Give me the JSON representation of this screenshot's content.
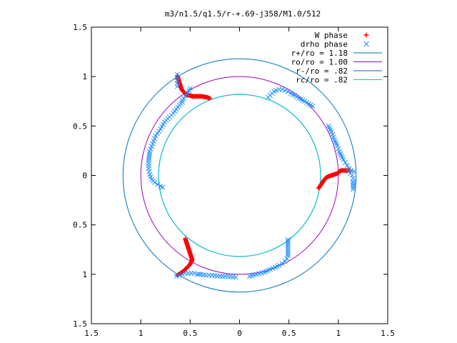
{
  "chart_data": {
    "type": "scatter",
    "title": "m3/n1.5/q1.5/r-+.69-j358/M1.0/512",
    "xlim": [
      -1.5,
      1.5
    ],
    "ylim": [
      -1.5,
      1.5
    ],
    "x_tick_labels": [
      "1.5",
      "1",
      "0.5",
      "0",
      "0.5",
      "1",
      "1.5"
    ],
    "x_tick_values": [
      -1.5,
      -1,
      -0.5,
      0,
      0.5,
      1,
      1.5
    ],
    "y_tick_labels": [
      "1.5",
      "1",
      "0.5",
      "0",
      "0.5",
      "1",
      "1.5"
    ],
    "y_tick_values": [
      1.5,
      1,
      0.5,
      0,
      -0.5,
      -1,
      -1.5
    ],
    "grid": false,
    "legend_position": "top-right",
    "circles": [
      {
        "name": "r+/ro = 1.18",
        "radius": 1.18,
        "color": "#0072bd"
      },
      {
        "name": "ro/ro = 1.00",
        "radius": 1.0,
        "color": "#a000c0"
      },
      {
        "name": "r-/ro = .82",
        "radius": 0.82,
        "color": "#1060c0"
      },
      {
        "name": "rc/ro = .82",
        "radius": 0.82,
        "color": "#00c8d0"
      }
    ],
    "series": [
      {
        "name": "W phase",
        "marker": "+",
        "color": "#ff0000",
        "segments": [
          {
            "points": [
              [
                -0.63,
                1.01
              ],
              [
                -0.62,
                0.98
              ],
              [
                -0.61,
                0.94
              ],
              [
                -0.6,
                0.91
              ],
              [
                -0.59,
                0.88
              ],
              [
                -0.58,
                0.86
              ],
              [
                -0.56,
                0.84
              ],
              [
                -0.54,
                0.82
              ],
              [
                -0.51,
                0.81
              ],
              [
                -0.47,
                0.8
              ],
              [
                -0.43,
                0.8
              ],
              [
                -0.38,
                0.8
              ],
              [
                -0.33,
                0.79
              ],
              [
                -0.3,
                0.78
              ]
            ]
          },
          {
            "points": [
              [
                0.8,
                -0.13
              ],
              [
                0.82,
                -0.1
              ],
              [
                0.84,
                -0.07
              ],
              [
                0.86,
                -0.04
              ],
              [
                0.88,
                -0.02
              ],
              [
                0.9,
                -0.01
              ],
              [
                0.93,
                0.0
              ],
              [
                0.96,
                0.01
              ],
              [
                0.99,
                0.02
              ],
              [
                1.01,
                0.04
              ],
              [
                1.03,
                0.05
              ],
              [
                1.06,
                0.05
              ],
              [
                1.09,
                0.05
              ],
              [
                1.12,
                0.05
              ]
            ]
          },
          {
            "points": [
              [
                -0.55,
                -0.64
              ],
              [
                -0.54,
                -0.67
              ],
              [
                -0.53,
                -0.7
              ],
              [
                -0.52,
                -0.73
              ],
              [
                -0.51,
                -0.76
              ],
              [
                -0.5,
                -0.79
              ],
              [
                -0.49,
                -0.82
              ],
              [
                -0.48,
                -0.85
              ],
              [
                -0.49,
                -0.88
              ],
              [
                -0.51,
                -0.91
              ],
              [
                -0.54,
                -0.94
              ],
              [
                -0.57,
                -0.97
              ],
              [
                -0.6,
                -0.99
              ],
              [
                -0.63,
                -1.01
              ]
            ]
          }
        ]
      },
      {
        "name": "drho phase",
        "marker": "x",
        "color": "#1e90ff",
        "segments": [
          {
            "points": [
              [
                -0.63,
                1.02
              ],
              [
                -0.63,
                0.99
              ],
              [
                -0.63,
                0.96
              ],
              [
                -0.63,
                0.93
              ],
              [
                -0.63,
                0.9
              ]
            ]
          },
          {
            "points": [
              [
                0.29,
                0.79
              ],
              [
                0.31,
                0.81
              ],
              [
                0.33,
                0.83
              ],
              [
                0.35,
                0.85
              ],
              [
                0.37,
                0.86
              ],
              [
                0.4,
                0.87
              ],
              [
                0.43,
                0.87
              ],
              [
                0.46,
                0.86
              ],
              [
                0.49,
                0.85
              ],
              [
                0.52,
                0.83
              ],
              [
                0.56,
                0.81
              ],
              [
                0.6,
                0.78
              ],
              [
                0.66,
                0.75
              ],
              [
                0.74,
                0.7
              ]
            ]
          },
          {
            "points": [
              [
                0.9,
                0.5
              ],
              [
                0.93,
                0.44
              ],
              [
                0.96,
                0.36
              ],
              [
                0.99,
                0.3
              ],
              [
                1.01,
                0.24
              ],
              [
                1.03,
                0.2
              ],
              [
                1.05,
                0.16
              ],
              [
                1.07,
                0.13
              ],
              [
                1.09,
                0.1
              ],
              [
                1.11,
                0.07
              ],
              [
                1.13,
                0.05
              ],
              [
                1.16,
                0.04
              ]
            ]
          },
          {
            "points": [
              [
                1.1,
                0.04
              ],
              [
                1.12,
                0.02
              ],
              [
                1.14,
                0.0
              ],
              [
                1.15,
                -0.03
              ],
              [
                1.15,
                -0.06
              ],
              [
                1.15,
                -0.1
              ],
              [
                1.15,
                -0.14
              ]
            ]
          },
          {
            "points": [
              [
                0.49,
                -0.65
              ],
              [
                0.49,
                -0.69
              ],
              [
                0.49,
                -0.73
              ],
              [
                0.49,
                -0.77
              ],
              [
                0.49,
                -0.81
              ],
              [
                0.48,
                -0.84
              ],
              [
                0.46,
                -0.87
              ],
              [
                0.43,
                -0.89
              ],
              [
                0.4,
                -0.91
              ],
              [
                0.36,
                -0.93
              ],
              [
                0.31,
                -0.95
              ],
              [
                0.25,
                -0.98
              ],
              [
                0.17,
                -1.0
              ],
              [
                0.1,
                -1.02
              ]
            ]
          },
          {
            "points": [
              [
                -0.64,
                -1.02
              ],
              [
                -0.61,
                -1.01
              ],
              [
                -0.58,
                -1.0
              ],
              [
                -0.55,
                -0.99
              ],
              [
                -0.52,
                -0.99
              ],
              [
                -0.49,
                -0.99
              ],
              [
                -0.46,
                -0.99
              ],
              [
                -0.43,
                -1.0
              ],
              [
                -0.39,
                -1.0
              ],
              [
                -0.34,
                -1.01
              ],
              [
                -0.28,
                -1.01
              ],
              [
                -0.2,
                -1.02
              ],
              [
                -0.12,
                -1.02
              ],
              [
                -0.04,
                -1.03
              ]
            ]
          },
          {
            "points": [
              [
                -0.58,
                0.74
              ],
              [
                -0.61,
                0.71
              ],
              [
                -0.64,
                0.67
              ],
              [
                -0.67,
                0.63
              ],
              [
                -0.71,
                0.59
              ],
              [
                -0.76,
                0.54
              ],
              [
                -0.8,
                0.47
              ],
              [
                -0.85,
                0.4
              ],
              [
                -0.88,
                0.32
              ],
              [
                -0.91,
                0.24
              ],
              [
                -0.92,
                0.15
              ],
              [
                -0.92,
                0.07
              ],
              [
                -0.91,
                0.01
              ],
              [
                -0.89,
                -0.04
              ],
              [
                -0.86,
                -0.07
              ],
              [
                -0.83,
                -0.09
              ],
              [
                -0.8,
                -0.11
              ],
              [
                -0.78,
                -0.12
              ]
            ]
          },
          {
            "points": [
              [
                -0.58,
                0.76
              ],
              [
                -0.55,
                0.8
              ],
              [
                -0.53,
                0.83
              ],
              [
                -0.51,
                0.86
              ],
              [
                -0.5,
                0.88
              ]
            ]
          }
        ]
      }
    ]
  }
}
